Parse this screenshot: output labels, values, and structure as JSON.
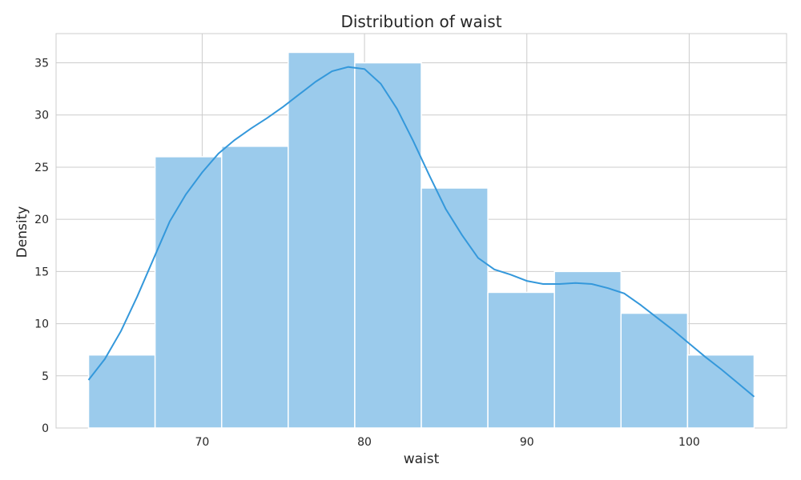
{
  "chart_data": {
    "type": "bar",
    "title": "Distribution of waist",
    "xlabel": "waist",
    "ylabel": "Density",
    "xlim": [
      61,
      106
    ],
    "ylim": [
      0,
      37.8
    ],
    "xticks": [
      70,
      80,
      90,
      100
    ],
    "yticks": [
      0,
      5,
      10,
      15,
      20,
      25,
      30,
      35
    ],
    "grid": true,
    "bin_edges": [
      63,
      67.1,
      71.2,
      75.3,
      79.4,
      83.5,
      87.6,
      91.7,
      95.8,
      99.9,
      104
    ],
    "values": [
      7,
      26,
      27,
      36,
      35,
      23,
      13,
      15,
      11,
      7
    ],
    "kde": {
      "x": [
        63,
        64,
        65,
        66,
        67,
        68,
        69,
        70,
        71,
        72,
        73,
        74,
        75,
        76,
        77,
        78,
        79,
        80,
        81,
        82,
        83,
        84,
        85,
        86,
        87,
        88,
        89,
        90,
        91,
        92,
        93,
        94,
        95,
        96,
        97,
        98,
        99,
        100,
        101,
        102,
        103,
        104
      ],
      "y": [
        4.6,
        6.6,
        9.3,
        12.6,
        16.2,
        19.8,
        22.4,
        24.5,
        26.3,
        27.6,
        28.7,
        29.7,
        30.8,
        32.0,
        33.2,
        34.2,
        34.6,
        34.4,
        33.0,
        30.6,
        27.5,
        24.2,
        21.0,
        18.5,
        16.3,
        15.2,
        14.7,
        14.1,
        13.8,
        13.8,
        13.9,
        13.8,
        13.4,
        12.9,
        11.8,
        10.6,
        9.4,
        8.1,
        6.8,
        5.6,
        4.3,
        3.0
      ]
    },
    "colors": {
      "bar_fill": "#9bcbec",
      "bar_stroke": "#ffffff",
      "kde_line": "#3498db",
      "grid": "#cccccc",
      "text": "#262626"
    }
  }
}
